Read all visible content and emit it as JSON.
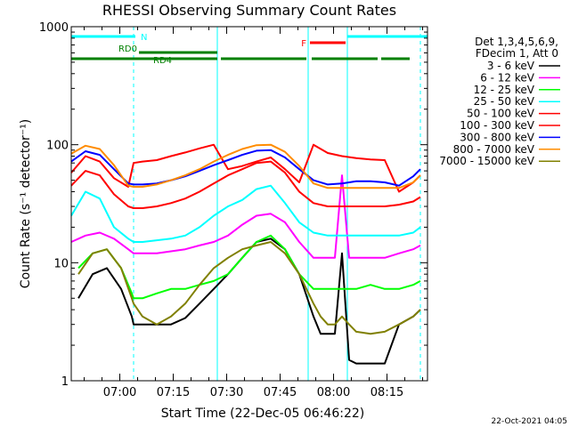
{
  "chart_data": {
    "type": "line",
    "title": "RHESSI Observing Summary Count Rates",
    "xlabel": "Start Time (22-Dec-05 06:46:22)",
    "ylabel": "Count Rate (s⁻¹ detector⁻¹)",
    "y_scale": "log",
    "ylim": [
      1,
      1000
    ],
    "xlim_minutes_after_start": [
      0,
      100
    ],
    "x_tick_labels": [
      "07:00",
      "07:15",
      "07:30",
      "07:45",
      "08:00",
      "08:15"
    ],
    "x_tick_minutes_after_start": [
      13.63,
      28.63,
      43.63,
      58.63,
      73.63,
      88.63
    ],
    "y_tick_labels": [
      "1",
      "10",
      "100",
      "1000"
    ],
    "y_tick_values": [
      1,
      10,
      100,
      1000
    ],
    "grid": false,
    "legend_header": [
      "Det 1,3,4,5,6,9,",
      "FDecim 1, Att 0"
    ],
    "legend_position": "right",
    "timestamp": "22-Oct-2021 04:05",
    "series": [
      {
        "name": "3 - 6 keV",
        "color": "#000000",
        "x": [
          2,
          6,
          10,
          14,
          17,
          17.5,
          20,
          24,
          28,
          32,
          36,
          40,
          44,
          48,
          52,
          56,
          60,
          64,
          68,
          70,
          72,
          74,
          76,
          78,
          80,
          84,
          88,
          92,
          96,
          98
        ],
        "y": [
          5,
          8,
          9,
          6,
          3.5,
          3,
          3,
          3,
          3,
          3.4,
          4.5,
          6,
          8,
          11,
          15,
          16,
          13,
          8,
          3.5,
          2.5,
          2.5,
          2.5,
          12,
          1.5,
          1.4,
          1.4,
          1.4,
          3,
          3.5,
          4
        ]
      },
      {
        "name": "6 - 12 keV",
        "color": "#ff00ff",
        "x": [
          0,
          4,
          8,
          12,
          16,
          17.5,
          20,
          24,
          28,
          32,
          36,
          40,
          44,
          48,
          52,
          56,
          60,
          64,
          68,
          72,
          74,
          76,
          78,
          80,
          84,
          88,
          92,
          96,
          98
        ],
        "y": [
          15,
          17,
          18,
          16,
          13,
          12,
          12,
          12,
          12.5,
          13,
          14,
          15,
          17,
          21,
          25,
          26,
          22,
          15,
          11,
          11,
          11,
          55,
          11,
          11,
          11,
          11,
          12,
          13,
          14
        ]
      },
      {
        "name": "12 - 25 keV",
        "color": "#00ff00",
        "x": [
          2,
          6,
          10,
          14,
          17,
          17.5,
          20,
          24,
          28,
          32,
          36,
          40,
          44,
          48,
          52,
          56,
          60,
          64,
          68,
          72,
          76,
          80,
          84,
          88,
          92,
          96,
          98
        ],
        "y": [
          9,
          12,
          13,
          9,
          5.5,
          5,
          5,
          5.5,
          6,
          6,
          6.5,
          7,
          8,
          11,
          15,
          17,
          13,
          8,
          6,
          6,
          6,
          6,
          6.5,
          6,
          6,
          6.5,
          7
        ]
      },
      {
        "name": "25 - 50 keV",
        "color": "#00ffff",
        "x": [
          0,
          4,
          8,
          12,
          16,
          17.5,
          20,
          24,
          28,
          32,
          36,
          40,
          44,
          48,
          52,
          56,
          60,
          64,
          68,
          72,
          76,
          80,
          84,
          88,
          92,
          96,
          98
        ],
        "y": [
          25,
          40,
          35,
          20,
          16,
          15,
          15,
          15.5,
          16,
          17,
          20,
          25,
          30,
          34,
          42,
          45,
          32,
          22,
          18,
          17,
          17,
          17,
          17,
          17,
          17,
          18,
          20
        ]
      },
      {
        "name": "50 - 100 keV",
        "color": "#ff0000",
        "x": [
          0,
          4,
          8,
          12,
          16,
          17.5,
          20,
          24,
          28,
          32,
          36,
          40,
          44,
          48,
          52,
          56,
          60,
          64,
          68,
          72,
          76,
          80,
          84,
          88,
          92,
          96,
          98
        ],
        "y": [
          45,
          60,
          55,
          38,
          30,
          29,
          29,
          30,
          32,
          35,
          40,
          47,
          55,
          62,
          70,
          72,
          58,
          40,
          32,
          30,
          30,
          30,
          30,
          30,
          31,
          33,
          36
        ]
      },
      {
        "name": "100 - 300 keV",
        "color": "#ff0000",
        "x": [
          0,
          4,
          8,
          12,
          16,
          17.5,
          20,
          24,
          28,
          32,
          36,
          40,
          44,
          48,
          52,
          56,
          60,
          64,
          68,
          72,
          76,
          80,
          84,
          88,
          92,
          96,
          98
        ],
        "y": [
          58,
          80,
          72,
          52,
          44,
          70,
          72,
          74,
          80,
          86,
          93,
          100,
          62,
          66,
          72,
          78,
          62,
          48,
          100,
          85,
          80,
          77,
          75,
          74,
          40,
          48,
          55
        ]
      },
      {
        "name": "300 - 800 keV",
        "color": "#0000ff",
        "x": [
          0,
          4,
          8,
          12,
          16,
          17.5,
          20,
          24,
          28,
          32,
          36,
          40,
          44,
          48,
          52,
          56,
          60,
          64,
          68,
          72,
          76,
          80,
          84,
          88,
          92,
          96,
          98
        ],
        "y": [
          72,
          88,
          82,
          62,
          47,
          46,
          46,
          47,
          50,
          54,
          60,
          67,
          74,
          82,
          89,
          90,
          78,
          62,
          50,
          46,
          47,
          49,
          49,
          48,
          45,
          54,
          62
        ]
      },
      {
        "name": "800 - 7000 keV",
        "color": "#ff8c00",
        "x": [
          0,
          4,
          8,
          12,
          16,
          17.5,
          20,
          24,
          28,
          32,
          36,
          40,
          44,
          48,
          52,
          56,
          60,
          64,
          68,
          72,
          76,
          80,
          84,
          88,
          92,
          96,
          98
        ],
        "y": [
          84,
          98,
          92,
          67,
          45,
          44,
          44,
          46,
          50,
          55,
          62,
          72,
          82,
          92,
          99,
          100,
          87,
          66,
          47,
          43,
          43,
          43,
          43,
          43,
          43,
          48,
          55
        ]
      },
      {
        "name": "7000 - 15000 keV",
        "color": "#808000",
        "x": [
          2,
          6,
          10,
          14,
          17,
          17.5,
          20,
          24,
          28,
          32,
          36,
          40,
          44,
          48,
          52,
          56,
          60,
          64,
          68,
          70,
          72,
          74,
          76,
          78,
          80,
          84,
          88,
          92,
          96,
          98
        ],
        "y": [
          8,
          12,
          13,
          9,
          5,
          4.5,
          3.5,
          3,
          3.5,
          4.5,
          6.5,
          9,
          11,
          13,
          14,
          15,
          12,
          8,
          4.5,
          3.5,
          3,
          3,
          3.5,
          3,
          2.6,
          2.5,
          2.6,
          3,
          3.5,
          4
        ]
      }
    ],
    "vertical_markers": [
      {
        "x": 0,
        "style": "solid"
      },
      {
        "x": 17.5,
        "style": "dashed"
      },
      {
        "x": 41,
        "style": "solid"
      },
      {
        "x": 66.5,
        "style": "solid"
      },
      {
        "x": 77.5,
        "style": "solid"
      },
      {
        "x": 98,
        "style": "dashed"
      }
    ],
    "flag_bars": [
      {
        "label": "N",
        "color": "#00ffff",
        "segments": [
          [
            0,
            18
          ],
          [
            77.5,
            100
          ]
        ]
      },
      {
        "label": "RD0",
        "color": "#008000",
        "segments": [
          [
            19,
            41
          ]
        ]
      },
      {
        "label": "F",
        "color": "#ff0000",
        "segments": [
          [
            67,
            77
          ]
        ]
      },
      {
        "label": "RD4",
        "color": "#008000",
        "segments": [
          [
            0,
            41
          ],
          [
            42,
            66
          ],
          [
            67.5,
            86
          ],
          [
            87,
            95
          ]
        ]
      }
    ]
  },
  "colors": {
    "background": "#ffffff",
    "axes": "#000000"
  }
}
